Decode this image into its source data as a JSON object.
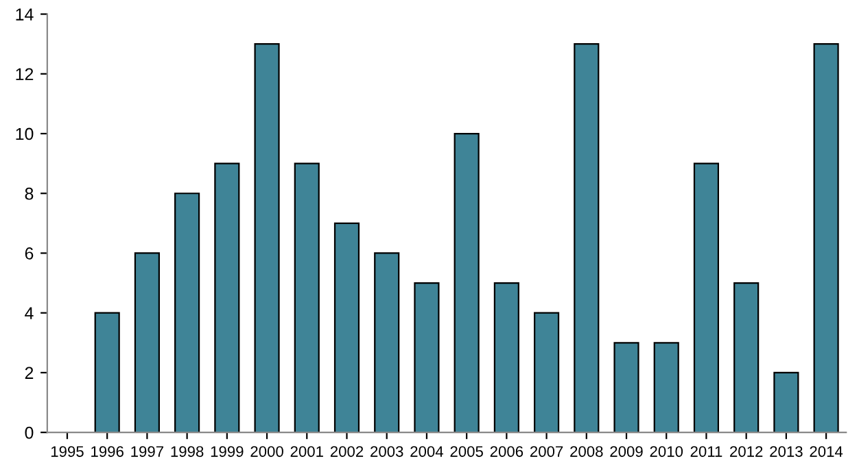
{
  "chart_data": {
    "type": "bar",
    "categories": [
      "1995",
      "1996",
      "1997",
      "1998",
      "1999",
      "2000",
      "2001",
      "2002",
      "2003",
      "2004",
      "2005",
      "2006",
      "2007",
      "2008",
      "2009",
      "2010",
      "2011",
      "2012",
      "2013",
      "2014"
    ],
    "values": [
      null,
      4,
      6,
      8,
      9,
      13,
      9,
      7,
      6,
      5,
      10,
      5,
      4,
      13,
      3,
      3,
      9,
      5,
      2,
      13
    ],
    "color": "#3f8497",
    "ylim": [
      0,
      14
    ],
    "yticks": [
      0,
      2,
      4,
      6,
      8,
      10,
      12,
      14
    ],
    "grid": false
  }
}
